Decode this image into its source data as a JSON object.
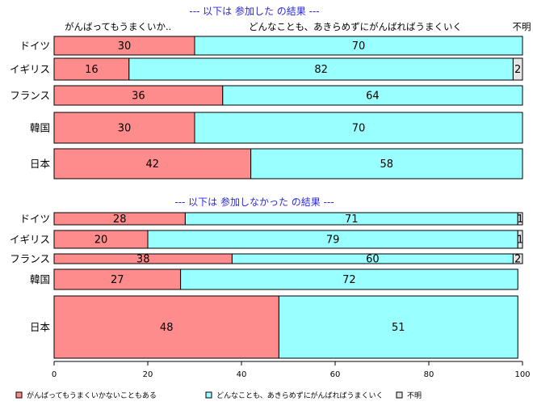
{
  "chart_data": {
    "type": "bar",
    "orientation": "horizontal",
    "stacked": true,
    "xlim": [
      0,
      100
    ],
    "xticks": [
      "0",
      "20",
      "40",
      "60",
      "80",
      "100"
    ],
    "grid": false,
    "legend_placement": "bottom",
    "colors": {
      "series1": "#ff8c8c",
      "series2": "#99ffff",
      "series3": "#e6e6e6",
      "title": "#2a2ad8"
    },
    "header_labels": {
      "series1": "がんばってもうまくいか..",
      "series2": "どんなことも、あきらめずにがんばればうまくいく",
      "series3": "不明"
    },
    "legend": [
      {
        "label": "がんばってもうまくいかないこともある"
      },
      {
        "label": "どんなことも、あきらめずにがんばればうまくいく"
      },
      {
        "label": "不明"
      }
    ],
    "panels": [
      {
        "title": "--- 以下は 参加した の結果 ---",
        "categories": [
          "ドイツ",
          "イギリス",
          "フランス",
          "韓国",
          "日本"
        ],
        "series": [
          {
            "name": "がんばってもうまくいかないこともある",
            "values": [
              30,
              16,
              36,
              30,
              42
            ]
          },
          {
            "name": "どんなことも、あきらめずにがんばればうまくいく",
            "values": [
              70,
              82,
              64,
              70,
              58
            ]
          },
          {
            "name": "不明",
            "values": [
              0,
              2,
              0,
              0,
              0
            ]
          }
        ],
        "shown_labels": [
          [
            "30",
            "70",
            ""
          ],
          [
            "16",
            "82",
            "2"
          ],
          [
            "36",
            "64",
            ""
          ],
          [
            "30",
            "70",
            ""
          ],
          [
            "42",
            "58",
            ""
          ]
        ]
      },
      {
        "title": "--- 以下は 参加しなかった の結果 ---",
        "categories": [
          "ドイツ",
          "イギリス",
          "フランス",
          "韓国",
          "日本"
        ],
        "series": [
          {
            "name": "がんばってもうまくいかないこともある",
            "values": [
              28,
              20,
              38,
              27,
              48
            ]
          },
          {
            "name": "どんなことも、あきらめずにがんばればうまくいく",
            "values": [
              71,
              79,
              60,
              72,
              51
            ]
          },
          {
            "name": "不明",
            "values": [
              1,
              1,
              2,
              0,
              0
            ]
          }
        ],
        "shown_labels": [
          [
            "28",
            "71",
            "1"
          ],
          [
            "20",
            "79",
            "1"
          ],
          [
            "38",
            "60",
            "2"
          ],
          [
            "27",
            "72",
            ""
          ],
          [
            "48",
            "51",
            ""
          ]
        ]
      }
    ]
  }
}
